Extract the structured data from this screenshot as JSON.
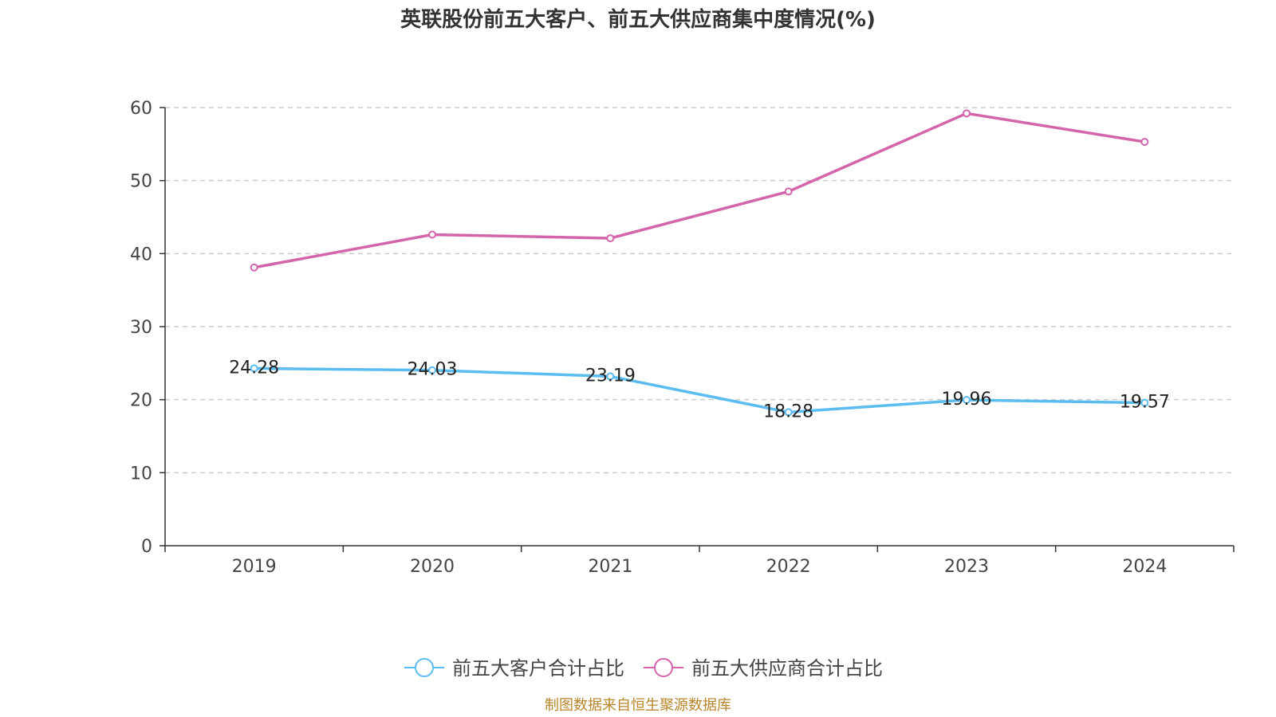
{
  "chart_data": {
    "type": "line",
    "title": "英联股份前五大客户、前五大供应商集中度情况(%)",
    "categories": [
      "2019",
      "2020",
      "2021",
      "2022",
      "2023",
      "2024"
    ],
    "series": [
      {
        "name": "前五大客户合计占比",
        "color": "#5bbcf0",
        "values": [
          24.28,
          24.03,
          23.19,
          18.28,
          19.96,
          19.57
        ],
        "show_labels": true,
        "labels": [
          "24.28",
          "24.03",
          "23.19",
          "18.28",
          "19.96",
          "19.57"
        ]
      },
      {
        "name": "前五大供应商合计占比",
        "color": "#d465ab",
        "values": [
          38.1,
          42.6,
          42.1,
          48.5,
          59.2,
          55.3
        ],
        "show_labels": false
      }
    ],
    "ylim": [
      0,
      60
    ],
    "yticks": [
      "0",
      "10",
      "20",
      "30",
      "40",
      "50",
      "60"
    ],
    "grid": true,
    "legend_position": "bottom-center"
  },
  "source_text": "制图数据来自恒生聚源数据库"
}
